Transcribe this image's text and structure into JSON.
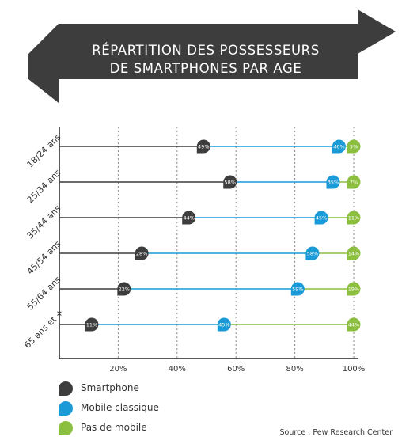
{
  "title_lines": [
    "RÉPARTITION DES POSSESSEURS",
    "DE SMARTPHONES PAR AGE"
  ],
  "source": "Source : Pew Research Center",
  "colors": {
    "banner": "#3d3d3d",
    "smartphone": "#3d3d3d",
    "mobile_classique": "#1a9ad6",
    "pas_de_mobile": "#8cbf3f",
    "axis": "#222222",
    "grid": "#888888"
  },
  "legend": [
    {
      "label": "Smartphone",
      "color_key": "smartphone"
    },
    {
      "label": "Mobile classique",
      "color_key": "mobile_classique"
    },
    {
      "label": "Pas de mobile",
      "color_key": "pas_de_mobile"
    }
  ],
  "chart_data": {
    "type": "dumbbell",
    "categories": [
      "18/24 ans",
      "25/34 ans",
      "35/44 ans",
      "45/54 ans",
      "55/64 ans",
      "65 ans et +"
    ],
    "series": [
      {
        "name": "Smartphone",
        "values": [
          49,
          58,
          44,
          28,
          22,
          11
        ]
      },
      {
        "name": "Mobile classique",
        "values": [
          46,
          35,
          45,
          58,
          59,
          45
        ]
      },
      {
        "name": "Pas de mobile",
        "values": [
          5,
          7,
          11,
          14,
          19,
          44
        ]
      }
    ],
    "x_ticks": [
      20,
      40,
      60,
      80,
      100
    ],
    "x_tick_labels": [
      "20%",
      "40%",
      "60%",
      "80%",
      "100%"
    ],
    "xlim": [
      0,
      100
    ],
    "grid": true,
    "legend_position": "bottom-left"
  }
}
